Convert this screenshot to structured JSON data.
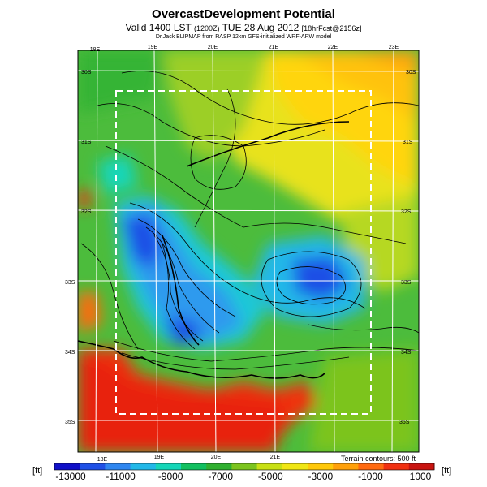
{
  "header": {
    "title": "OvercastDevelopment Potential",
    "valid_prefix": "Valid 1400 LST",
    "valid_small": "(1200Z)",
    "valid_date": "TUE 28 Aug 2012",
    "forecast_tag": "[18hrFcst@2156z]",
    "credit": "Dr.Jack BLIPMAP from RASP 12km GFS-initialized WRF-ARW model"
  },
  "map": {
    "lon_labels_top": [
      "18E",
      "19E",
      "20E",
      "21E",
      "22E",
      "23E"
    ],
    "lon_labels_bottom": [
      "18E",
      "19E",
      "20E",
      "21E"
    ],
    "lat_labels_left": [
      "30S",
      "31S",
      "32S",
      "33S",
      "34S",
      "35S"
    ],
    "lat_labels_right": [
      "30S",
      "31S",
      "32S",
      "33S",
      "34S",
      "35S"
    ],
    "terrain_note": "Terrain contours: 500 ft"
  },
  "colorbar": {
    "unit_left": "[ft]",
    "unit_right": "[ft]",
    "tick_labels": [
      "-13000",
      "-11000",
      "-9000",
      "-7000",
      "-5000",
      "-3000",
      "-1000",
      "1000"
    ],
    "colors": [
      "#1010c8",
      "#1f50e6",
      "#2f86f0",
      "#22b8e8",
      "#15d6b8",
      "#12c060",
      "#30b030",
      "#7cc41e",
      "#c8e014",
      "#f0e614",
      "#ffc80a",
      "#ffa00a",
      "#ff6a10",
      "#f03010",
      "#c81410"
    ]
  }
}
